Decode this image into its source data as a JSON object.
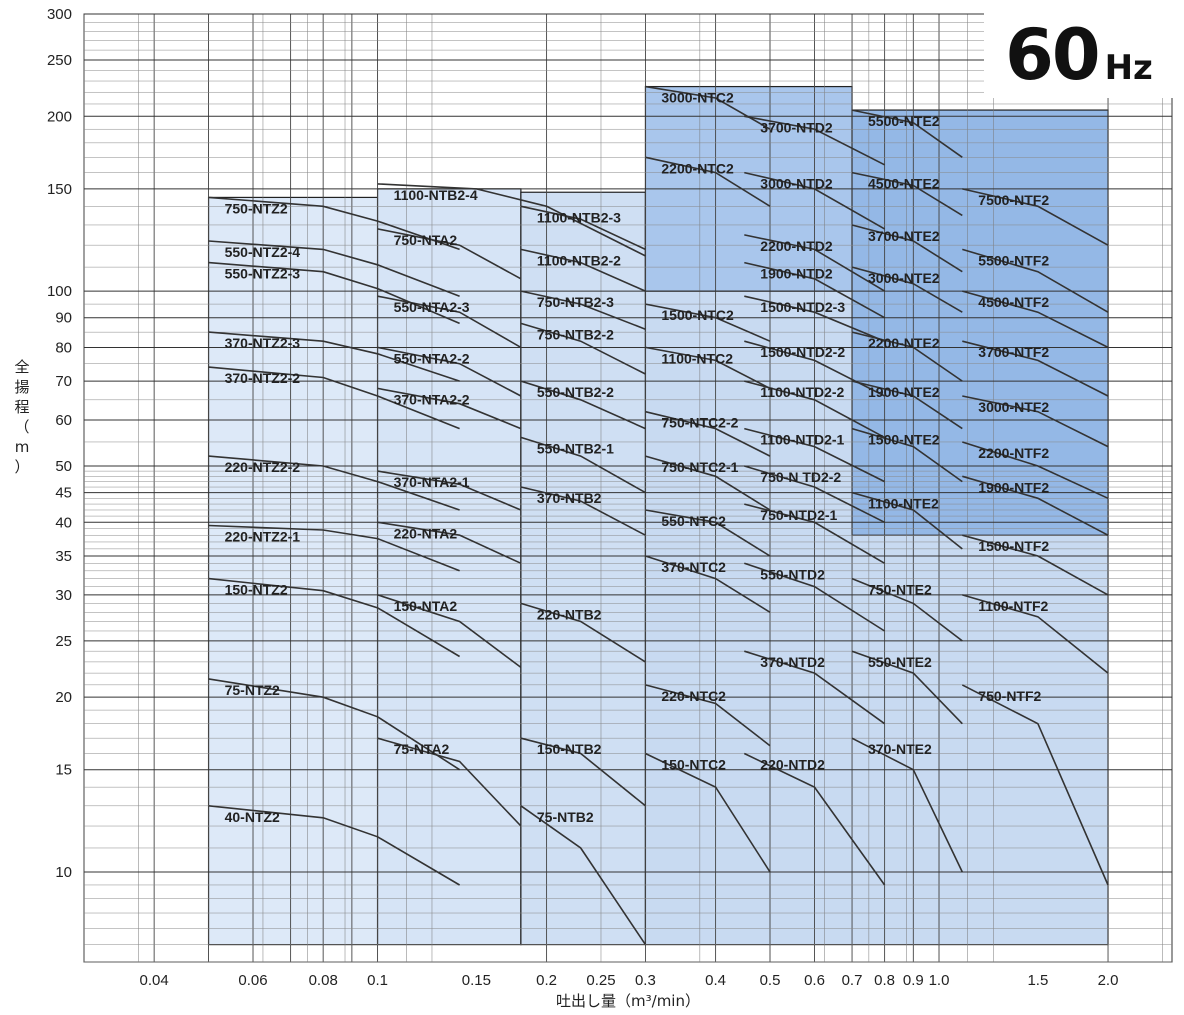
{
  "badge": {
    "value": "60",
    "unit": "Hz"
  },
  "chart_data": {
    "type": "line",
    "title": "",
    "xlabel": "吐出し量（m³/min）",
    "ylabel": "全揚程（m）",
    "xscale": "log",
    "yscale": "log",
    "xlim": [
      0.03,
      2.6
    ],
    "ylim": [
      7,
      300
    ],
    "x_ticks": [
      {
        "v": 0.04,
        "label": "0.04"
      },
      {
        "v": 0.06,
        "label": "0.06"
      },
      {
        "v": 0.08,
        "label": "0.08"
      },
      {
        "v": 0.1,
        "label": "0.1"
      },
      {
        "v": 0.15,
        "label": "0.15"
      },
      {
        "v": 0.2,
        "label": "0.2"
      },
      {
        "v": 0.25,
        "label": "0.25"
      },
      {
        "v": 0.3,
        "label": "0.3"
      },
      {
        "v": 0.4,
        "label": "0.4"
      },
      {
        "v": 0.5,
        "label": "0.5"
      },
      {
        "v": 0.6,
        "label": "0.6"
      },
      {
        "v": 0.7,
        "label": "0.7"
      },
      {
        "v": 0.8,
        "label": "0.8"
      },
      {
        "v": 0.9,
        "label": "0.9"
      },
      {
        "v": 1.0,
        "label": "1.0"
      },
      {
        "v": 1.5,
        "label": "1.5"
      },
      {
        "v": 2.0,
        "label": "2.0"
      }
    ],
    "y_ticks": [
      {
        "v": 10,
        "label": "10"
      },
      {
        "v": 15,
        "label": "15"
      },
      {
        "v": 20,
        "label": "20"
      },
      {
        "v": 25,
        "label": "25"
      },
      {
        "v": 30,
        "label": "30"
      },
      {
        "v": 35,
        "label": "35"
      },
      {
        "v": 40,
        "label": "40"
      },
      {
        "v": 45,
        "label": "45"
      },
      {
        "v": 50,
        "label": "50"
      },
      {
        "v": 60,
        "label": "60"
      },
      {
        "v": 70,
        "label": "70"
      },
      {
        "v": 80,
        "label": "80"
      },
      {
        "v": 90,
        "label": "90"
      },
      {
        "v": 100,
        "label": "100"
      },
      {
        "v": 150,
        "label": "150"
      },
      {
        "v": 200,
        "label": "200"
      },
      {
        "v": 250,
        "label": "250"
      },
      {
        "v": 300,
        "label": "300"
      }
    ],
    "grid": true,
    "regions": [
      {
        "name": "NTZ2",
        "x": [
          0.05,
          0.1
        ],
        "y": [
          7.5,
          145
        ],
        "color": "#dde9f8"
      },
      {
        "name": "NTA2",
        "x": [
          0.1,
          0.18
        ],
        "y": [
          7.5,
          150
        ],
        "color": "#d6e4f6"
      },
      {
        "name": "NTB2",
        "x": [
          0.18,
          0.3
        ],
        "y": [
          7.5,
          148
        ],
        "color": "#cfdff3"
      },
      {
        "name": "NTC2-NTF2",
        "x": [
          0.3,
          2.0
        ],
        "y": [
          7.5,
          140
        ],
        "color": "#c8daf1"
      },
      {
        "name": "NTC2-high",
        "x": [
          0.3,
          0.7
        ],
        "y": [
          100,
          225
        ],
        "color": "#a9c6ec"
      },
      {
        "name": "NTE2-NTF2-high",
        "x": [
          0.7,
          2.0
        ],
        "y": [
          38,
          205
        ],
        "color": "#94b8e6"
      }
    ],
    "series": [
      {
        "name": "40-NTZ2",
        "x": [
          0.05,
          0.08,
          0.1,
          0.14
        ],
        "y": [
          13,
          12.4,
          11.5,
          9.5
        ]
      },
      {
        "name": "75-NTZ2",
        "x": [
          0.05,
          0.08,
          0.1,
          0.14
        ],
        "y": [
          21.5,
          20,
          18.5,
          15
        ]
      },
      {
        "name": "150-NTZ2",
        "x": [
          0.05,
          0.08,
          0.1,
          0.14
        ],
        "y": [
          32,
          30.5,
          28.5,
          23.5
        ]
      },
      {
        "name": "220-NTZ2-1",
        "x": [
          0.05,
          0.08,
          0.1,
          0.14
        ],
        "y": [
          39.5,
          38.8,
          37.5,
          33
        ]
      },
      {
        "name": "220-NTZ2-2",
        "x": [
          0.05,
          0.08,
          0.1,
          0.14
        ],
        "y": [
          52,
          50,
          47,
          42
        ]
      },
      {
        "name": "370-NTZ2-2",
        "x": [
          0.05,
          0.08,
          0.1,
          0.14
        ],
        "y": [
          74,
          71,
          66,
          58
        ]
      },
      {
        "name": "370-NTZ2-3",
        "x": [
          0.05,
          0.08,
          0.1,
          0.14
        ],
        "y": [
          85,
          82,
          78,
          70
        ]
      },
      {
        "name": "550-NTZ2-3",
        "x": [
          0.05,
          0.08,
          0.1,
          0.14
        ],
        "y": [
          112,
          108,
          101,
          88
        ]
      },
      {
        "name": "550-NTZ2-4",
        "x": [
          0.05,
          0.08,
          0.1,
          0.14
        ],
        "y": [
          122,
          118,
          111,
          98
        ]
      },
      {
        "name": "750-NTZ2",
        "x": [
          0.05,
          0.08,
          0.1,
          0.14
        ],
        "y": [
          145,
          140,
          132,
          118
        ]
      },
      {
        "name": "75-NTA2",
        "x": [
          0.1,
          0.14,
          0.18
        ],
        "y": [
          17,
          15.5,
          12
        ]
      },
      {
        "name": "150-NTA2",
        "x": [
          0.1,
          0.14,
          0.18
        ],
        "y": [
          30,
          27,
          22.5
        ]
      },
      {
        "name": "220-NTA2",
        "x": [
          0.1,
          0.14,
          0.18
        ],
        "y": [
          40,
          38,
          34
        ]
      },
      {
        "name": "370-NTA2-1",
        "x": [
          0.1,
          0.14,
          0.18
        ],
        "y": [
          49,
          46.5,
          42
        ]
      },
      {
        "name": "370-NTA2-2",
        "x": [
          0.1,
          0.14,
          0.18
        ],
        "y": [
          68,
          64,
          58
        ]
      },
      {
        "name": "550-NTA2-2",
        "x": [
          0.1,
          0.14,
          0.18
        ],
        "y": [
          80,
          75,
          66
        ]
      },
      {
        "name": "550-NTA2-3",
        "x": [
          0.1,
          0.14,
          0.18
        ],
        "y": [
          98,
          92,
          80
        ]
      },
      {
        "name": "750-NTA2",
        "x": [
          0.1,
          0.14,
          0.18
        ],
        "y": [
          128,
          120,
          105
        ]
      },
      {
        "name": "1100-NTB2-4",
        "x": [
          0.1,
          0.15,
          0.2,
          0.3
        ],
        "y": [
          153,
          150,
          140,
          115
        ]
      },
      {
        "name": "1100-NTB2-3",
        "x": [
          0.18,
          0.23,
          0.3
        ],
        "y": [
          140,
          133,
          118
        ]
      },
      {
        "name": "1100-NTB2-2",
        "x": [
          0.18,
          0.23,
          0.3
        ],
        "y": [
          118,
          112,
          100
        ]
      },
      {
        "name": "750-NTB2-3",
        "x": [
          0.18,
          0.23,
          0.3
        ],
        "y": [
          100,
          95,
          86
        ]
      },
      {
        "name": "750-NTB2-2",
        "x": [
          0.18,
          0.23,
          0.3
        ],
        "y": [
          88,
          82,
          72
        ]
      },
      {
        "name": "550-NTB2-2",
        "x": [
          0.18,
          0.23,
          0.3
        ],
        "y": [
          70,
          65,
          58
        ]
      },
      {
        "name": "550-NTB2-1",
        "x": [
          0.18,
          0.23,
          0.3
        ],
        "y": [
          56,
          52,
          45
        ]
      },
      {
        "name": "370-NTB2",
        "x": [
          0.18,
          0.23,
          0.3
        ],
        "y": [
          46,
          43.5,
          38
        ]
      },
      {
        "name": "220-NTB2",
        "x": [
          0.18,
          0.23,
          0.3
        ],
        "y": [
          29,
          27,
          23
        ]
      },
      {
        "name": "150-NTB2",
        "x": [
          0.18,
          0.23,
          0.3
        ],
        "y": [
          17,
          16,
          13
        ]
      },
      {
        "name": "75-NTB2",
        "x": [
          0.18,
          0.23,
          0.3
        ],
        "y": [
          13,
          11,
          7.5
        ]
      },
      {
        "name": "3000-NTC2",
        "x": [
          0.3,
          0.4,
          0.5
        ],
        "y": [
          225,
          215,
          190
        ]
      },
      {
        "name": "2200-NTC2",
        "x": [
          0.3,
          0.4,
          0.5
        ],
        "y": [
          170,
          160,
          140
        ]
      },
      {
        "name": "1500-NTC2",
        "x": [
          0.3,
          0.4,
          0.5
        ],
        "y": [
          95,
          90,
          82
        ]
      },
      {
        "name": "1100-NTC2",
        "x": [
          0.3,
          0.4,
          0.5
        ],
        "y": [
          80,
          76,
          68
        ]
      },
      {
        "name": "750-NTC2-2",
        "x": [
          0.3,
          0.4,
          0.5
        ],
        "y": [
          62,
          58,
          52
        ]
      },
      {
        "name": "750-NTC2-1",
        "x": [
          0.3,
          0.4,
          0.5
        ],
        "y": [
          52,
          48,
          42
        ]
      },
      {
        "name": "550-NTC2",
        "x": [
          0.3,
          0.4,
          0.5
        ],
        "y": [
          42,
          40,
          35
        ]
      },
      {
        "name": "370-NTC2",
        "x": [
          0.3,
          0.4,
          0.5
        ],
        "y": [
          35,
          32,
          28
        ]
      },
      {
        "name": "220-NTC2",
        "x": [
          0.3,
          0.4,
          0.5
        ],
        "y": [
          21,
          19.5,
          16.5
        ]
      },
      {
        "name": "150-NTC2",
        "x": [
          0.3,
          0.4,
          0.5
        ],
        "y": [
          16,
          14,
          10
        ]
      },
      {
        "name": "3700-NTD2",
        "x": [
          0.45,
          0.6,
          0.8
        ],
        "y": [
          200,
          190,
          165
        ]
      },
      {
        "name": "3000-NTD2",
        "x": [
          0.45,
          0.6,
          0.8
        ],
        "y": [
          160,
          150,
          128
        ]
      },
      {
        "name": "2200-NTD2",
        "x": [
          0.45,
          0.6,
          0.8
        ],
        "y": [
          125,
          118,
          100
        ]
      },
      {
        "name": "1900-NTD2",
        "x": [
          0.45,
          0.6,
          0.8
        ],
        "y": [
          112,
          105,
          90
        ]
      },
      {
        "name": "1500-NTD2-3",
        "x": [
          0.45,
          0.6,
          0.8
        ],
        "y": [
          98,
          92,
          82
        ]
      },
      {
        "name": "1500-NTD2-2",
        "x": [
          0.45,
          0.6,
          0.8
        ],
        "y": [
          82,
          76,
          66
        ]
      },
      {
        "name": "1100-NTD2-2",
        "x": [
          0.45,
          0.6,
          0.8
        ],
        "y": [
          70,
          65,
          56
        ]
      },
      {
        "name": "1100-NTD2-1",
        "x": [
          0.45,
          0.6,
          0.8
        ],
        "y": [
          58,
          54,
          47
        ]
      },
      {
        "name": "750-N TD2-2",
        "x": [
          0.45,
          0.6,
          0.8
        ],
        "y": [
          50,
          46,
          40
        ]
      },
      {
        "name": "750-NTD2-1",
        "x": [
          0.45,
          0.6,
          0.8
        ],
        "y": [
          43,
          40,
          34
        ]
      },
      {
        "name": "550-NTD2",
        "x": [
          0.45,
          0.6,
          0.8
        ],
        "y": [
          34,
          31,
          26
        ]
      },
      {
        "name": "370-NTD2",
        "x": [
          0.45,
          0.6,
          0.8
        ],
        "y": [
          24,
          22,
          18
        ]
      },
      {
        "name": "220-NTD2",
        "x": [
          0.45,
          0.6,
          0.8
        ],
        "y": [
          16,
          14,
          9.5
        ]
      },
      {
        "name": "5500-NTE2",
        "x": [
          0.7,
          0.9,
          1.1
        ],
        "y": [
          205,
          195,
          170
        ]
      },
      {
        "name": "4500-NTE2",
        "x": [
          0.7,
          0.9,
          1.1
        ],
        "y": [
          160,
          152,
          135
        ]
      },
      {
        "name": "3700-NTE2",
        "x": [
          0.7,
          0.9,
          1.1
        ],
        "y": [
          130,
          122,
          108
        ]
      },
      {
        "name": "3000-NTE2",
        "x": [
          0.7,
          0.9,
          1.1
        ],
        "y": [
          110,
          103,
          92
        ]
      },
      {
        "name": "2200-NTE2",
        "x": [
          0.7,
          0.9,
          1.1
        ],
        "y": [
          85,
          80,
          70
        ]
      },
      {
        "name": "1900-NTE2",
        "x": [
          0.7,
          0.9,
          1.1
        ],
        "y": [
          70,
          66,
          58
        ]
      },
      {
        "name": "1500-NTE2",
        "x": [
          0.7,
          0.9,
          1.1
        ],
        "y": [
          58,
          54,
          47
        ]
      },
      {
        "name": "1100-NTE2",
        "x": [
          0.7,
          0.9,
          1.1
        ],
        "y": [
          45,
          42,
          36
        ]
      },
      {
        "name": "750-NTE2",
        "x": [
          0.7,
          0.9,
          1.1
        ],
        "y": [
          32,
          29,
          25
        ]
      },
      {
        "name": "550-NTE2",
        "x": [
          0.7,
          0.9,
          1.1
        ],
        "y": [
          24,
          22,
          18
        ]
      },
      {
        "name": "370-NTE2",
        "x": [
          0.7,
          0.9,
          1.1
        ],
        "y": [
          17,
          15,
          10
        ]
      },
      {
        "name": "7500-NTF2",
        "x": [
          1.1,
          1.5,
          2.0
        ],
        "y": [
          150,
          140,
          120
        ]
      },
      {
        "name": "5500-NTF2",
        "x": [
          1.1,
          1.5,
          2.0
        ],
        "y": [
          118,
          108,
          92
        ]
      },
      {
        "name": "4500-NTF2",
        "x": [
          1.1,
          1.5,
          2.0
        ],
        "y": [
          100,
          92,
          80
        ]
      },
      {
        "name": "3700-NTF2",
        "x": [
          1.1,
          1.5,
          2.0
        ],
        "y": [
          82,
          76,
          66
        ]
      },
      {
        "name": "3000-NTF2",
        "x": [
          1.1,
          1.5,
          2.0
        ],
        "y": [
          66,
          62,
          54
        ]
      },
      {
        "name": "2200-NTF2",
        "x": [
          1.1,
          1.5,
          2.0
        ],
        "y": [
          55,
          50,
          44
        ]
      },
      {
        "name": "1900-NTF2",
        "x": [
          1.1,
          1.5,
          2.0
        ],
        "y": [
          48,
          44,
          38
        ]
      },
      {
        "name": "1500-NTF2",
        "x": [
          1.1,
          1.5,
          2.0
        ],
        "y": [
          38,
          35,
          30
        ]
      },
      {
        "name": "1100-NTF2",
        "x": [
          1.1,
          1.5,
          2.0
        ],
        "y": [
          30,
          27.5,
          22
        ]
      },
      {
        "name": "750-NTF2",
        "x": [
          1.1,
          1.5,
          2.0
        ],
        "y": [
          21,
          18,
          9.5
        ]
      }
    ]
  }
}
